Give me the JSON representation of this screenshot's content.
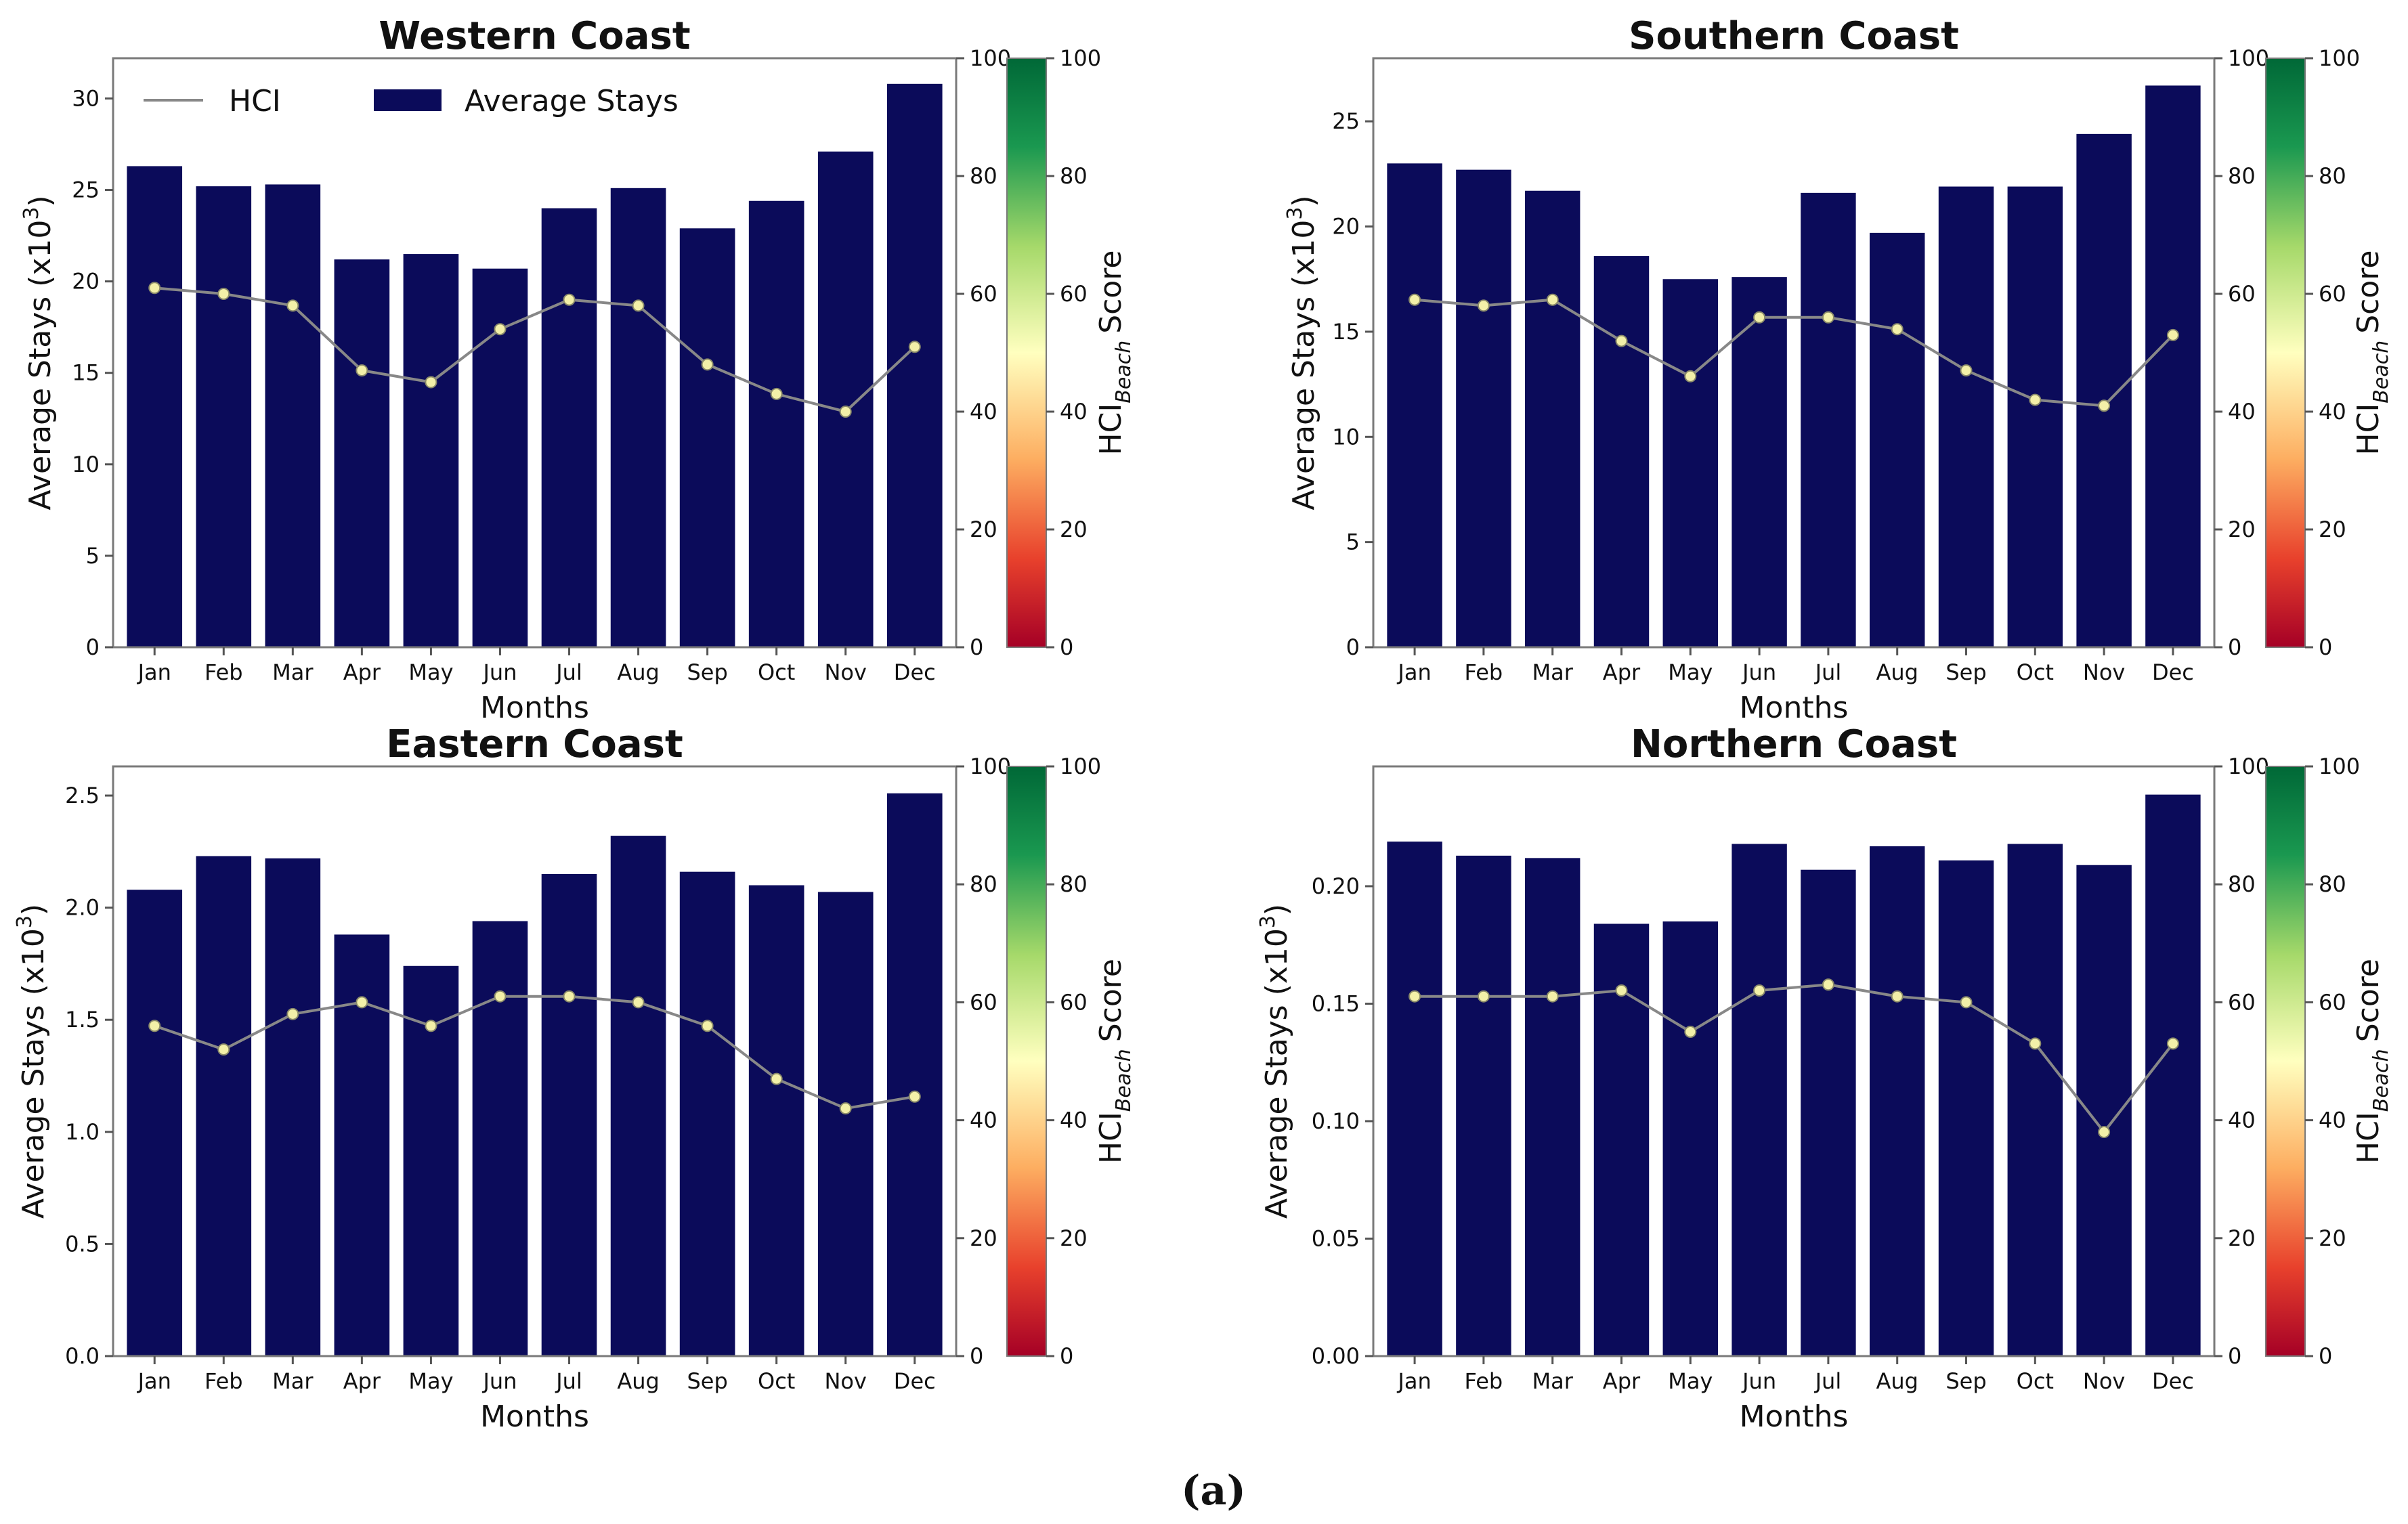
{
  "figure_caption": "(a)",
  "colors": {
    "bar": "#0b0b5a",
    "hci_line": "#888888",
    "hci_marker": "#f3f0a8",
    "hci_marker_edge": "#8a8a6a",
    "colorbar_stops": [
      "#a50026",
      "#e8412c",
      "#fdae61",
      "#ffffbf",
      "#a6d96a",
      "#1a9850",
      "#006837"
    ]
  },
  "legend": {
    "hci": "HCI",
    "stays": "Average Stays"
  },
  "colorbar": {
    "label_main": "HCI",
    "label_sub": "Beach",
    "label_tail": "Score",
    "ticks": [
      "0",
      "20",
      "40",
      "60",
      "80",
      "100"
    ]
  },
  "chart_data": [
    {
      "type": "bar",
      "title": "Western Coast",
      "xlabel": "Months",
      "ylabel": "Average Stays (x10",
      "ylabel_sup": "3",
      "ylabel_tail": ")",
      "categories": [
        "Jan",
        "Feb",
        "Mar",
        "Apr",
        "May",
        "Jun",
        "Jul",
        "Aug",
        "Sep",
        "Oct",
        "Nov",
        "Dec"
      ],
      "values": [
        26.3,
        25.2,
        25.3,
        21.2,
        21.5,
        20.7,
        24.0,
        25.1,
        22.9,
        24.4,
        27.1,
        30.8
      ],
      "ylim": [
        0,
        32.2
      ],
      "yticks": [
        0,
        5,
        10,
        15,
        20,
        25,
        30
      ],
      "ytick_labels": [
        "0",
        "5",
        "10",
        "15",
        "20",
        "25",
        "30"
      ],
      "hci": [
        61,
        60,
        58,
        47,
        45,
        54,
        59,
        58,
        48,
        43,
        40,
        51
      ],
      "hci_ylim": [
        0,
        100
      ],
      "hci_ticks": [
        "0",
        "20",
        "40",
        "60",
        "80",
        "100"
      ],
      "show_legend": true
    },
    {
      "type": "bar",
      "title": "Southern Coast",
      "xlabel": "Months",
      "ylabel": "Average Stays (x10",
      "ylabel_sup": "3",
      "ylabel_tail": ")",
      "categories": [
        "Jan",
        "Feb",
        "Mar",
        "Apr",
        "May",
        "Jun",
        "Jul",
        "Aug",
        "Sep",
        "Oct",
        "Nov",
        "Dec"
      ],
      "values": [
        23.0,
        22.7,
        21.7,
        18.6,
        17.5,
        17.6,
        21.6,
        19.7,
        21.9,
        21.9,
        24.4,
        26.7
      ],
      "ylim": [
        0,
        28.0
      ],
      "yticks": [
        0,
        5,
        10,
        15,
        20,
        25
      ],
      "ytick_labels": [
        "0",
        "5",
        "10",
        "15",
        "20",
        "25"
      ],
      "hci": [
        59,
        58,
        59,
        52,
        46,
        56,
        56,
        54,
        47,
        42,
        41,
        53
      ],
      "hci_ylim": [
        0,
        100
      ],
      "hci_ticks": [
        "0",
        "20",
        "40",
        "60",
        "80",
        "100"
      ],
      "show_legend": false
    },
    {
      "type": "bar",
      "title": "Eastern Coast",
      "xlabel": "Months",
      "ylabel": "Average Stays (x10",
      "ylabel_sup": "3",
      "ylabel_tail": ")",
      "categories": [
        "Jan",
        "Feb",
        "Mar",
        "Apr",
        "May",
        "Jun",
        "Jul",
        "Aug",
        "Sep",
        "Oct",
        "Nov",
        "Dec"
      ],
      "values": [
        2.08,
        2.23,
        2.22,
        1.88,
        1.74,
        1.94,
        2.15,
        2.32,
        2.16,
        2.1,
        2.07,
        2.51
      ],
      "ylim": [
        0,
        2.63
      ],
      "yticks": [
        0,
        0.5,
        1.0,
        1.5,
        2.0,
        2.5
      ],
      "ytick_labels": [
        "0.0",
        "0.5",
        "1.0",
        "1.5",
        "2.0",
        "2.5"
      ],
      "hci": [
        56,
        52,
        58,
        60,
        56,
        61,
        61,
        60,
        56,
        47,
        42,
        44
      ],
      "hci_ylim": [
        0,
        100
      ],
      "hci_ticks": [
        "0",
        "20",
        "40",
        "60",
        "80",
        "100"
      ],
      "show_legend": false
    },
    {
      "type": "bar",
      "title": "Northern Coast",
      "xlabel": "Months",
      "ylabel": "Average Stays (x10",
      "ylabel_sup": "3",
      "ylabel_tail": ")",
      "categories": [
        "Jan",
        "Feb",
        "Mar",
        "Apr",
        "May",
        "Jun",
        "Jul",
        "Aug",
        "Sep",
        "Oct",
        "Nov",
        "Dec"
      ],
      "values": [
        0.219,
        0.213,
        0.212,
        0.184,
        0.185,
        0.218,
        0.207,
        0.217,
        0.211,
        0.218,
        0.209,
        0.239
      ],
      "ylim": [
        0,
        0.251
      ],
      "yticks": [
        0,
        0.05,
        0.1,
        0.15,
        0.2
      ],
      "ytick_labels": [
        "0.00",
        "0.05",
        "0.10",
        "0.15",
        "0.20"
      ],
      "hci": [
        61,
        61,
        61,
        62,
        55,
        62,
        63,
        61,
        60,
        53,
        38,
        53
      ],
      "hci_ylim": [
        0,
        100
      ],
      "hci_ticks": [
        "0",
        "20",
        "40",
        "60",
        "80",
        "100"
      ],
      "show_legend": false
    }
  ]
}
